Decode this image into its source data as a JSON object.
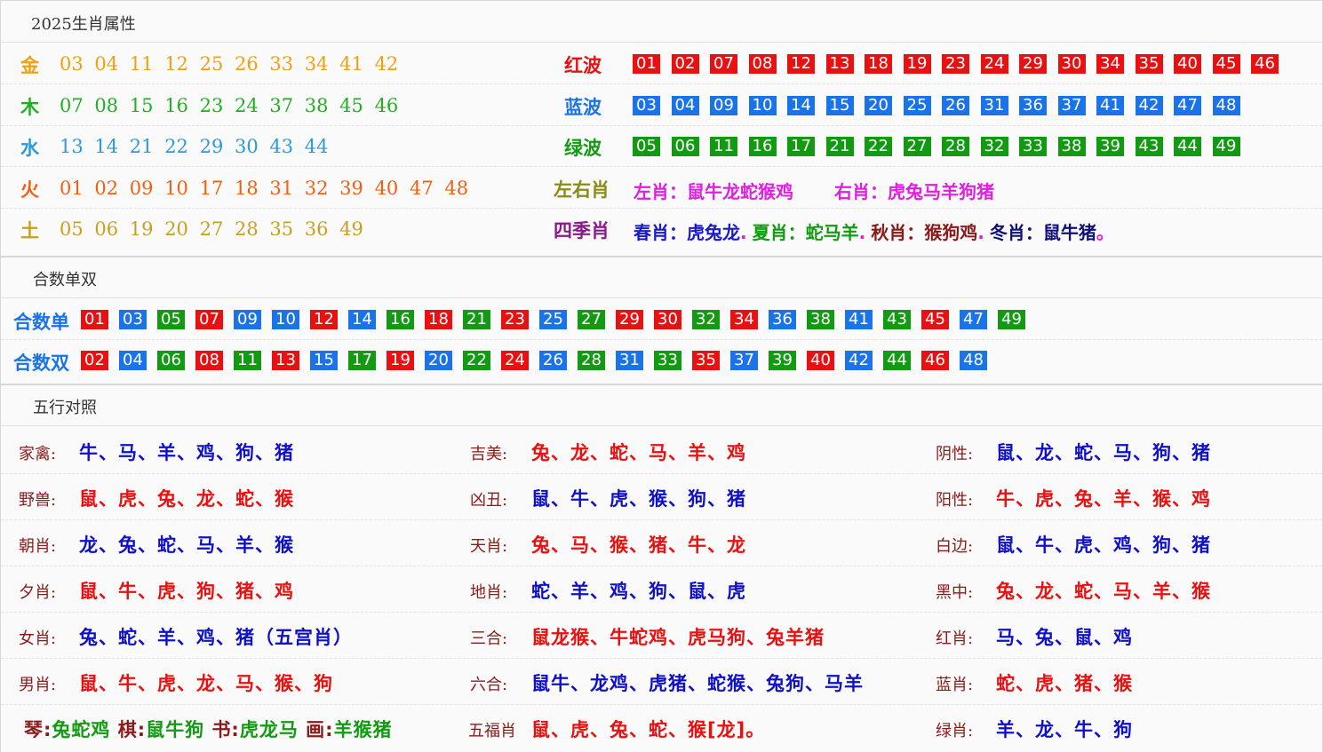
{
  "section1": {
    "title": "2025生肖属性",
    "elements": [
      {
        "label": "金",
        "color": "#f0a010",
        "numbers": "03 04 11 12 25 26 33 34 41 42"
      },
      {
        "label": "木",
        "color": "#20b020",
        "numbers": "07 08 15 16 23 24 37 38 45 46"
      },
      {
        "label": "水",
        "color": "#2a9ae0",
        "numbers": "13 14 21 22 29 30 43 44"
      },
      {
        "label": "火",
        "color": "#f06010",
        "numbers": "01 02 09 10 17 18 31 32 39 40 47 48"
      },
      {
        "label": "土",
        "color": "#c8a020",
        "numbers": "05 06 19 20 27 28 35 36 49"
      }
    ],
    "waves": [
      {
        "label": "红波",
        "label_color": "#e81010",
        "color": "red",
        "numbers": [
          "01",
          "02",
          "07",
          "08",
          "12",
          "13",
          "18",
          "19",
          "23",
          "24",
          "29",
          "30",
          "34",
          "35",
          "40",
          "45",
          "46"
        ]
      },
      {
        "label": "蓝波",
        "label_color": "#1a73e8",
        "color": "blue",
        "numbers": [
          "03",
          "04",
          "09",
          "10",
          "14",
          "15",
          "20",
          "25",
          "26",
          "31",
          "36",
          "37",
          "41",
          "42",
          "47",
          "48"
        ]
      },
      {
        "label": "绿波",
        "label_color": "#129b12",
        "color": "green",
        "numbers": [
          "05",
          "06",
          "11",
          "16",
          "17",
          "21",
          "22",
          "27",
          "28",
          "32",
          "33",
          "38",
          "39",
          "43",
          "44",
          "49"
        ]
      }
    ],
    "left_right": {
      "label": "左右肖",
      "left": "左肖：鼠牛龙蛇猴鸡",
      "right": "右肖：虎兔马羊狗猪"
    },
    "seasons": {
      "label": "四季肖",
      "spring": "春肖：虎兔龙",
      "summer": "夏肖：蛇马羊",
      "autumn": "秋肖：猴狗鸡",
      "winter": "冬肖：鼠牛猪",
      "dot": ".",
      "end": "。"
    }
  },
  "section2": {
    "title": "合数单双",
    "odd": {
      "label": "合数单",
      "items": [
        {
          "n": "01",
          "c": "red"
        },
        {
          "n": "03",
          "c": "blue"
        },
        {
          "n": "05",
          "c": "green"
        },
        {
          "n": "07",
          "c": "red"
        },
        {
          "n": "09",
          "c": "blue"
        },
        {
          "n": "10",
          "c": "blue"
        },
        {
          "n": "12",
          "c": "red"
        },
        {
          "n": "14",
          "c": "blue"
        },
        {
          "n": "16",
          "c": "green"
        },
        {
          "n": "18",
          "c": "red"
        },
        {
          "n": "21",
          "c": "green"
        },
        {
          "n": "23",
          "c": "red"
        },
        {
          "n": "25",
          "c": "blue"
        },
        {
          "n": "27",
          "c": "green"
        },
        {
          "n": "29",
          "c": "red"
        },
        {
          "n": "30",
          "c": "red"
        },
        {
          "n": "32",
          "c": "green"
        },
        {
          "n": "34",
          "c": "red"
        },
        {
          "n": "36",
          "c": "blue"
        },
        {
          "n": "38",
          "c": "green"
        },
        {
          "n": "41",
          "c": "blue"
        },
        {
          "n": "43",
          "c": "green"
        },
        {
          "n": "45",
          "c": "red"
        },
        {
          "n": "47",
          "c": "blue"
        },
        {
          "n": "49",
          "c": "green"
        }
      ]
    },
    "even": {
      "label": "合数双",
      "items": [
        {
          "n": "02",
          "c": "red"
        },
        {
          "n": "04",
          "c": "blue"
        },
        {
          "n": "06",
          "c": "green"
        },
        {
          "n": "08",
          "c": "red"
        },
        {
          "n": "11",
          "c": "green"
        },
        {
          "n": "13",
          "c": "red"
        },
        {
          "n": "15",
          "c": "blue"
        },
        {
          "n": "17",
          "c": "green"
        },
        {
          "n": "19",
          "c": "red"
        },
        {
          "n": "20",
          "c": "blue"
        },
        {
          "n": "22",
          "c": "green"
        },
        {
          "n": "24",
          "c": "red"
        },
        {
          "n": "26",
          "c": "blue"
        },
        {
          "n": "28",
          "c": "green"
        },
        {
          "n": "31",
          "c": "blue"
        },
        {
          "n": "33",
          "c": "green"
        },
        {
          "n": "35",
          "c": "red"
        },
        {
          "n": "37",
          "c": "blue"
        },
        {
          "n": "39",
          "c": "green"
        },
        {
          "n": "40",
          "c": "red"
        },
        {
          "n": "42",
          "c": "blue"
        },
        {
          "n": "44",
          "c": "green"
        },
        {
          "n": "46",
          "c": "red"
        },
        {
          "n": "48",
          "c": "blue"
        }
      ]
    }
  },
  "section3": {
    "title": "五行对照",
    "rows": [
      [
        {
          "l": "家禽:",
          "v": "牛、马、羊、鸡、狗、猪",
          "c": "cb"
        },
        {
          "l": "吉美:",
          "v": "兔、龙、蛇、马、羊、鸡",
          "c": "cr"
        },
        {
          "l": "阴性:",
          "v": "鼠、龙、蛇、马、狗、猪",
          "c": "cb"
        }
      ],
      [
        {
          "l": "野兽:",
          "v": "鼠、虎、兔、龙、蛇、猴",
          "c": "cr"
        },
        {
          "l": "凶丑:",
          "v": "鼠、牛、虎、猴、狗、猪",
          "c": "cb"
        },
        {
          "l": "阳性:",
          "v": "牛、虎、兔、羊、猴、鸡",
          "c": "cr"
        }
      ],
      [
        {
          "l": "朝肖:",
          "v": "龙、兔、蛇、马、羊、猴",
          "c": "cb"
        },
        {
          "l": "天肖:",
          "v": "兔、马、猴、猪、牛、龙",
          "c": "cr"
        },
        {
          "l": "白边:",
          "v": "鼠、牛、虎、鸡、狗、猪",
          "c": "cb"
        }
      ],
      [
        {
          "l": "夕肖:",
          "v": "鼠、牛、虎、狗、猪、鸡",
          "c": "cr"
        },
        {
          "l": "地肖:",
          "v": "蛇、羊、鸡、狗、鼠、虎",
          "c": "cb"
        },
        {
          "l": "黑中:",
          "v": "兔、龙、蛇、马、羊、猴",
          "c": "cr"
        }
      ],
      [
        {
          "l": "女肖:",
          "v": "兔、蛇、羊、鸡、猪（五宫肖）",
          "c": "cb"
        },
        {
          "l": "三合:",
          "v": "鼠龙猴、牛蛇鸡、虎马狗、兔羊猪",
          "c": "cr"
        },
        {
          "l": "红肖:",
          "v": "马、兔、鼠、鸡",
          "c": "cb"
        }
      ],
      [
        {
          "l": "男肖:",
          "v": "鼠、牛、虎、龙、马、猴、狗",
          "c": "cr"
        },
        {
          "l": "六合:",
          "v": "鼠牛、龙鸡、虎猪、蛇猴、兔狗、马羊",
          "c": "cb"
        },
        {
          "l": "蓝肖:",
          "v": "蛇、虎、猪、猴",
          "c": "cr"
        }
      ]
    ],
    "last_row": {
      "qin_l": "琴:",
      "qin_v": "兔蛇鸡",
      "qi_l": "棋:",
      "qi_v": "鼠牛狗",
      "shu_l": "书:",
      "shu_v": "虎龙马",
      "hua_l": "画:",
      "hua_v": "羊猴猪",
      "wufu_l": "五福肖",
      "wufu_v": "鼠、虎、兔、蛇、猴[龙]。",
      "green_l": "绿肖:",
      "green_v": "羊、龙、牛、狗"
    }
  }
}
